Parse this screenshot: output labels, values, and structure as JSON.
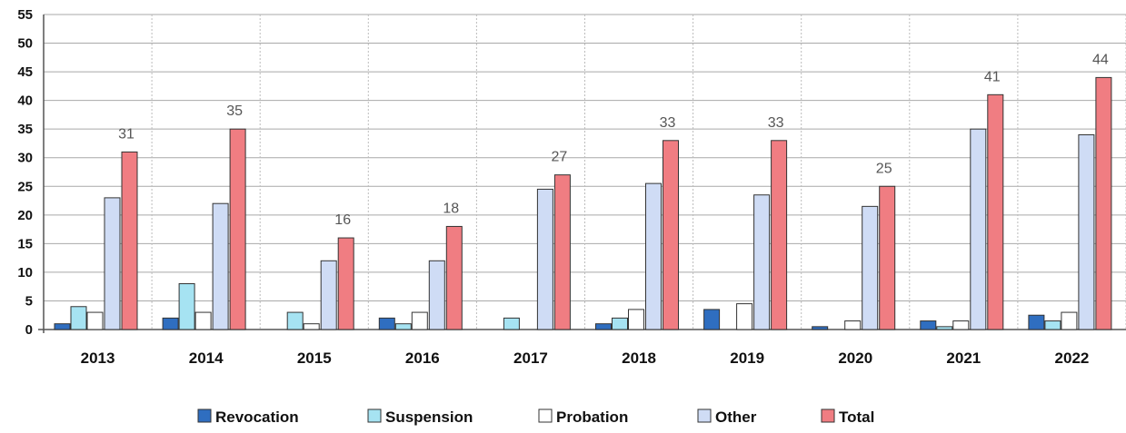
{
  "chart_data": {
    "type": "bar",
    "categories": [
      "2013",
      "2014",
      "2015",
      "2016",
      "2017",
      "2018",
      "2019",
      "2020",
      "2021",
      "2022"
    ],
    "series": [
      {
        "name": "Revocation",
        "color": "#2f6ec0",
        "values": [
          1,
          2,
          0,
          2,
          0,
          1,
          3.5,
          0.5,
          1.5,
          2.5
        ]
      },
      {
        "name": "Suspension",
        "color": "#a6e3f2",
        "values": [
          4,
          8,
          3,
          1,
          2,
          2,
          0,
          0,
          0.5,
          1.5
        ]
      },
      {
        "name": "Probation",
        "color": "#ffffff",
        "values": [
          3,
          3,
          1,
          3,
          0,
          3.5,
          4.5,
          1.5,
          1.5,
          3
        ]
      },
      {
        "name": "Other",
        "color": "#cfdcf5",
        "values": [
          23,
          22,
          12,
          12,
          24.5,
          25.5,
          23.5,
          21.5,
          35,
          34
        ]
      },
      {
        "name": "Total",
        "color": "#f07d82",
        "values": [
          31,
          35,
          16,
          18,
          27,
          33,
          33,
          25,
          41,
          44
        ]
      }
    ],
    "data_labels": [
      "31",
      "35",
      "16",
      "18",
      "27",
      "33",
      "33",
      "25",
      "41",
      "44"
    ],
    "y_ticks": [
      "0",
      "5",
      "10",
      "15",
      "20",
      "25",
      "30",
      "35",
      "40",
      "45",
      "50",
      "55"
    ],
    "ylim": [
      0,
      55
    ],
    "grid": true,
    "legend_position": "bottom",
    "title": "",
    "xlabel": "",
    "ylabel": ""
  }
}
